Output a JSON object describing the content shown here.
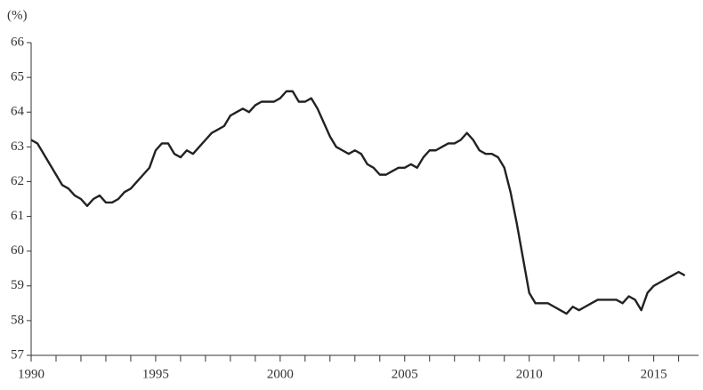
{
  "chart_data": {
    "type": "line",
    "y_unit_label": "(%)",
    "x": [
      1990.0,
      1990.25,
      1990.5,
      1990.75,
      1991.0,
      1991.25,
      1991.5,
      1991.75,
      1992.0,
      1992.25,
      1992.5,
      1992.75,
      1993.0,
      1993.25,
      1993.5,
      1993.75,
      1994.0,
      1994.25,
      1994.5,
      1994.75,
      1995.0,
      1995.25,
      1995.5,
      1995.75,
      1996.0,
      1996.25,
      1996.5,
      1996.75,
      1997.0,
      1997.25,
      1997.5,
      1997.75,
      1998.0,
      1998.25,
      1998.5,
      1998.75,
      1999.0,
      1999.25,
      1999.5,
      1999.75,
      2000.0,
      2000.25,
      2000.5,
      2000.75,
      2001.0,
      2001.25,
      2001.5,
      2001.75,
      2002.0,
      2002.25,
      2002.5,
      2002.75,
      2003.0,
      2003.25,
      2003.5,
      2003.75,
      2004.0,
      2004.25,
      2004.5,
      2004.75,
      2005.0,
      2005.25,
      2005.5,
      2005.75,
      2006.0,
      2006.25,
      2006.5,
      2006.75,
      2007.0,
      2007.25,
      2007.5,
      2007.75,
      2008.0,
      2008.25,
      2008.5,
      2008.75,
      2009.0,
      2009.25,
      2009.5,
      2009.75,
      2010.0,
      2010.25,
      2010.5,
      2010.75,
      2011.0,
      2011.25,
      2011.5,
      2011.75,
      2012.0,
      2012.25,
      2012.5,
      2012.75,
      2013.0,
      2013.25,
      2013.5,
      2013.75,
      2014.0,
      2014.25,
      2014.5,
      2014.75,
      2015.0,
      2015.25,
      2015.5,
      2015.75,
      2016.0,
      2016.25
    ],
    "series": [
      {
        "color": "#222222",
        "values": [
          63.2,
          63.1,
          62.8,
          62.5,
          62.2,
          61.9,
          61.8,
          61.6,
          61.5,
          61.3,
          61.5,
          61.6,
          61.4,
          61.4,
          61.5,
          61.7,
          61.8,
          62.0,
          62.2,
          62.4,
          62.9,
          63.1,
          63.1,
          62.8,
          62.7,
          62.9,
          62.8,
          63.0,
          63.2,
          63.4,
          63.5,
          63.6,
          63.9,
          64.0,
          64.1,
          64.0,
          64.2,
          64.3,
          64.3,
          64.3,
          64.4,
          64.6,
          64.6,
          64.3,
          64.3,
          64.4,
          64.1,
          63.7,
          63.3,
          63.0,
          62.9,
          62.8,
          62.9,
          62.8,
          62.5,
          62.4,
          62.2,
          62.2,
          62.3,
          62.4,
          62.4,
          62.5,
          62.4,
          62.7,
          62.9,
          62.9,
          63.0,
          63.1,
          63.1,
          63.2,
          63.4,
          63.2,
          62.9,
          62.8,
          62.8,
          62.7,
          62.4,
          61.7,
          60.8,
          59.8,
          58.8,
          58.5,
          58.5,
          58.5,
          58.4,
          58.3,
          58.2,
          58.4,
          58.3,
          58.4,
          58.5,
          58.6,
          58.6,
          58.6,
          58.6,
          58.5,
          58.7,
          58.6,
          58.3,
          58.8,
          59.0,
          59.1,
          59.2,
          59.3,
          59.4,
          59.3
        ]
      }
    ],
    "xlim": [
      1990,
      2016.8
    ],
    "xticks": [
      1990,
      1995,
      2000,
      2005,
      2010,
      2015
    ],
    "x_minor_ticks": [
      1991,
      1992,
      1993,
      1994,
      1996,
      1997,
      1998,
      1999,
      2001,
      2002,
      2003,
      2004,
      2006,
      2007,
      2008,
      2009,
      2011,
      2012,
      2013,
      2014,
      2016
    ],
    "ylim": [
      57,
      66
    ],
    "yticks": [
      57,
      58,
      59,
      60,
      61,
      62,
      63,
      64,
      65,
      66
    ],
    "grid": false
  }
}
